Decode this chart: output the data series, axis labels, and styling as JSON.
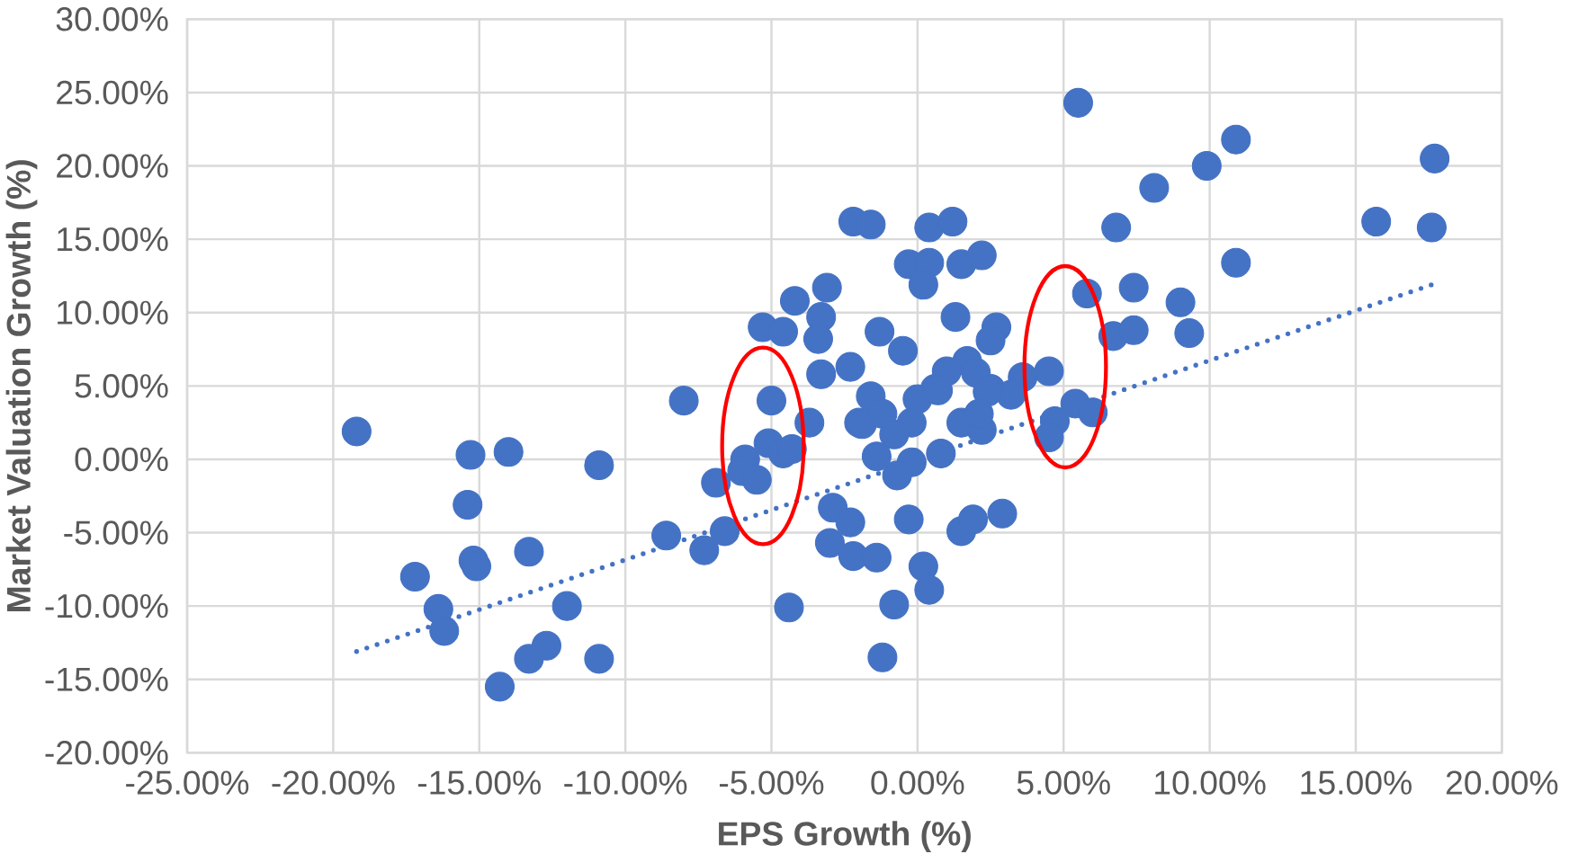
{
  "chart_data": {
    "type": "scatter",
    "xlabel": "EPS Growth (%)",
    "ylabel": "Market Valuation Growth (%)",
    "xlim": [
      -25,
      20
    ],
    "ylim": [
      -20,
      30
    ],
    "xticks": [
      {
        "value": -25,
        "label": "-25.00%"
      },
      {
        "value": -20,
        "label": "-20.00%"
      },
      {
        "value": -15,
        "label": "-15.00%"
      },
      {
        "value": -10,
        "label": "-10.00%"
      },
      {
        "value": -5,
        "label": "-5.00%"
      },
      {
        "value": 0,
        "label": "0.00%"
      },
      {
        "value": 5,
        "label": "5.00%"
      },
      {
        "value": 10,
        "label": "10.00%"
      },
      {
        "value": 15,
        "label": "15.00%"
      },
      {
        "value": 20,
        "label": "20.00%"
      }
    ],
    "yticks": [
      {
        "value": -20,
        "label": "-20.00%"
      },
      {
        "value": -15,
        "label": "-15.00%"
      },
      {
        "value": -10,
        "label": "-10.00%"
      },
      {
        "value": -5,
        "label": "-5.00%"
      },
      {
        "value": 0,
        "label": "0.00%"
      },
      {
        "value": 5,
        "label": "5.00%"
      },
      {
        "value": 10,
        "label": "10.00%"
      },
      {
        "value": 15,
        "label": "15.00%"
      },
      {
        "value": 20,
        "label": "20.00%"
      },
      {
        "value": 25,
        "label": "25.00%"
      },
      {
        "value": 30,
        "label": "30.00%"
      }
    ],
    "grid": true,
    "series": [
      {
        "color": "#4472c4",
        "marker": "circle",
        "x": [
          -2.2,
          -1.6,
          -3.1,
          -4.2,
          -3.3,
          -5.3,
          -4.6,
          -3.4,
          -1.3,
          -3.3,
          -2.3,
          -8.0,
          -5.0,
          5.5,
          10.9,
          9.9,
          8.1,
          17.7,
          15.7,
          17.6,
          6.8,
          0.4,
          1.2,
          -0.3,
          0.4,
          0.2,
          1.5,
          2.2,
          10.9,
          5.8,
          7.4,
          9.0,
          1.3,
          2.7,
          2.5,
          6.7,
          7.4,
          9.3,
          -0.5,
          1.7,
          2.0,
          1.0,
          3.6,
          4.5,
          2.5,
          3.2,
          0.6,
          -1.6,
          0.0,
          5.4,
          -19.2,
          -15.3,
          -14.0,
          -10.9,
          -15.4,
          -17.2,
          -15.2,
          -15.1,
          -13.3,
          -16.4,
          -16.2,
          -12.0,
          -12.7,
          -13.3,
          -10.9,
          -14.3,
          -8.6,
          -7.3,
          -6.6,
          -6.9,
          -5.9,
          -5.1,
          -6.0,
          -5.5,
          -4.6,
          -4.3,
          -3.7,
          -2.9,
          -3.0,
          -2.3,
          -2.2,
          -4.4,
          -2.0,
          6.0,
          4.7,
          4.5,
          2.4,
          0.7,
          -0.2,
          -1.9,
          -1.2,
          -0.8,
          1.5,
          2.2,
          2.1,
          0.8,
          -0.2,
          -0.7,
          -1.4,
          -0.3,
          1.5,
          1.9,
          2.9,
          -1.4,
          0.2,
          0.4,
          -0.8,
          -1.2
        ],
        "values": [
          16.2,
          16.0,
          11.7,
          10.8,
          9.7,
          9.0,
          8.7,
          8.2,
          8.7,
          5.8,
          6.3,
          4.0,
          4.0,
          24.3,
          21.8,
          20.0,
          18.5,
          20.5,
          16.2,
          15.8,
          15.8,
          15.8,
          16.2,
          13.3,
          13.4,
          11.9,
          13.3,
          13.9,
          13.4,
          11.3,
          11.7,
          10.7,
          9.7,
          9.0,
          8.1,
          8.4,
          8.8,
          8.6,
          7.4,
          6.7,
          5.9,
          6.0,
          5.6,
          6.0,
          4.8,
          4.4,
          4.8,
          4.3,
          4.1,
          3.8,
          1.9,
          0.3,
          0.5,
          -0.4,
          -3.1,
          -8.0,
          -6.9,
          -7.3,
          -6.3,
          -10.2,
          -11.7,
          -10.0,
          -12.7,
          -13.6,
          -13.6,
          -15.5,
          -5.2,
          -6.2,
          -4.9,
          -1.6,
          0.0,
          1.1,
          -0.8,
          -1.4,
          0.4,
          0.7,
          2.5,
          -3.3,
          -5.7,
          -4.3,
          -6.6,
          -10.1,
          2.5,
          3.2,
          2.6,
          1.5,
          4.6,
          4.7,
          2.5,
          2.4,
          3.1,
          1.7,
          2.5,
          2.0,
          3.1,
          0.4,
          -0.2,
          -1.1,
          0.2,
          -4.1,
          -4.9,
          -4.1,
          -3.7,
          -6.7,
          -7.3,
          -8.9,
          -9.9,
          -13.5
        ]
      },
      {
        "type": "line",
        "color": "#4472c4",
        "marker": "none",
        "line_style": "dotted",
        "x": [
          -19.2,
          17.6
        ],
        "values": [
          -13.1,
          11.9
        ]
      }
    ]
  }
}
